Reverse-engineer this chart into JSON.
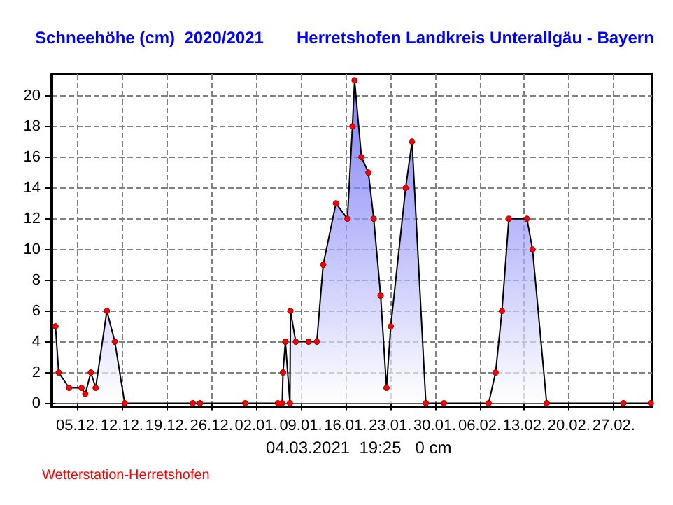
{
  "chart_data": {
    "type": "area",
    "title": "Schneehöhe (cm)  2020/2021",
    "subtitle": "Herretshofen Landkreis Unterallgäu - Bayern",
    "annotations": [
      "04.03.2021  19:25   0 cm",
      "Wetterstation-Herretshofen"
    ],
    "x": [
      "2020-12-01T14:00",
      "2020-12-02T02:00",
      "2020-12-03T17:00",
      "2020-12-05T16:00",
      "2020-12-06T06:00",
      "2020-12-07T03:00",
      "2020-12-07T21:00",
      "2020-12-09T15:00",
      "2020-12-10T21:00",
      "2020-12-12T10:00",
      "2020-12-23T02:00",
      "2020-12-24T05:00",
      "2020-12-31T07:00",
      "2021-01-05T10:00",
      "2021-01-06T02:00",
      "2021-01-06T05:00",
      "2021-01-06T14:00",
      "2021-01-07T07:00",
      "2021-01-07T09:00",
      "2021-01-08T05:00",
      "2021-01-10T05:00",
      "2021-01-11T12:00",
      "2021-01-12T12:00",
      "2021-01-14T12:00",
      "2021-01-16T07:00",
      "2021-01-17T02:00",
      "2021-01-17T10:00",
      "2021-01-18T12:00",
      "2021-01-19T14:00",
      "2021-01-20T10:00",
      "2021-01-21T12:00",
      "2021-01-22T10:00",
      "2021-01-23T02:00",
      "2021-01-25T10:00",
      "2021-01-26T10:00",
      "2021-01-28T14:00",
      "2021-01-31T10:00",
      "2021-02-07T10:00",
      "2021-02-08T12:00",
      "2021-02-09T12:00",
      "2021-02-10T14:00",
      "2021-02-13T10:00",
      "2021-02-14T07:00",
      "2021-02-16T12:00",
      "2021-02-28T12:00",
      "2021-03-04T19:25"
    ],
    "series": [
      {
        "color": "#4848f4",
        "values": [
          5,
          2,
          1,
          1,
          0.6,
          2,
          1,
          6,
          4,
          0,
          0,
          0,
          0,
          0,
          0,
          2,
          4,
          0,
          6,
          4,
          4,
          4,
          9,
          13,
          12,
          18,
          21,
          16,
          15,
          12,
          7,
          1,
          5,
          14,
          17,
          0,
          0,
          0,
          2,
          6,
          12,
          12,
          10,
          0,
          0,
          0
        ]
      }
    ],
    "xlim": [
      "2020-12-01T00:00",
      "2021-03-05T00:00"
    ],
    "xticks": [
      {
        "value": "2020-12-05",
        "label": "05.12."
      },
      {
        "value": "2020-12-12",
        "label": "12.12."
      },
      {
        "value": "2020-12-19",
        "label": "19.12."
      },
      {
        "value": "2020-12-26",
        "label": "26.12."
      },
      {
        "value": "2021-01-02",
        "label": "02.01."
      },
      {
        "value": "2021-01-09",
        "label": "09.01."
      },
      {
        "value": "2021-01-16",
        "label": "16.01."
      },
      {
        "value": "2021-01-23",
        "label": "23.01."
      },
      {
        "value": "2021-01-30",
        "label": "30.01."
      },
      {
        "value": "2021-02-06",
        "label": "06.02."
      },
      {
        "value": "2021-02-13",
        "label": "13.02."
      },
      {
        "value": "2021-02-20",
        "label": "20.02."
      },
      {
        "value": "2021-02-27",
        "label": "27.02."
      }
    ],
    "ylim": [
      -0.25,
      21.4
    ],
    "yticks": [
      0,
      2,
      4,
      6,
      8,
      10,
      12,
      14,
      16,
      18,
      20
    ],
    "grid": true,
    "marker": "circle"
  }
}
